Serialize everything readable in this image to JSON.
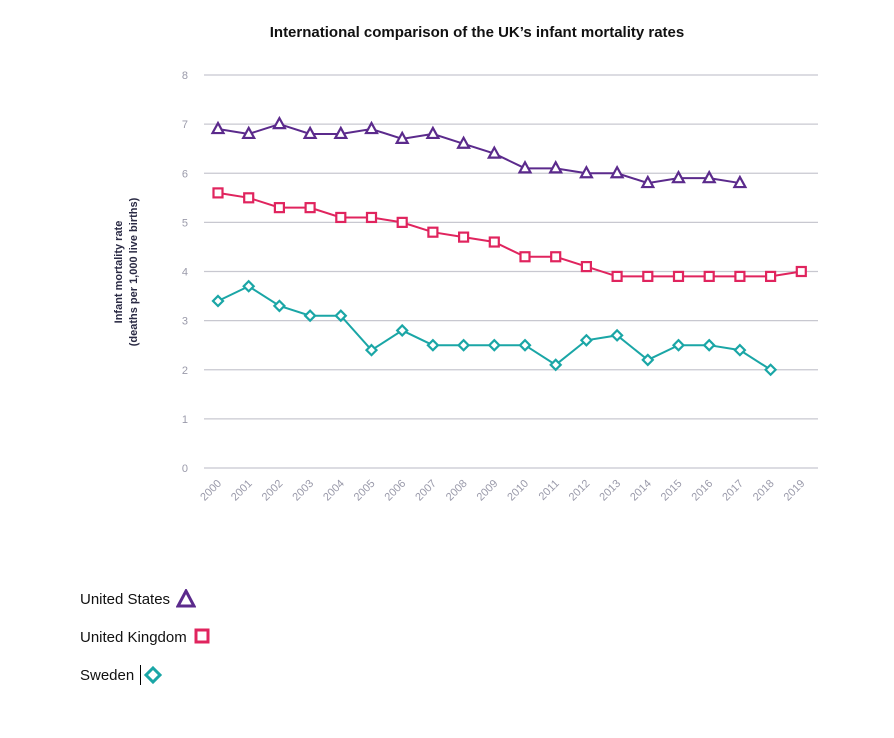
{
  "chart_data": {
    "type": "line",
    "title": "International comparison of the UK’s infant mortality rates",
    "ylabel_line1": "Infant mortality rate",
    "ylabel_line2": "(deaths per 1,000 live births)",
    "ylim": [
      0,
      8
    ],
    "yticks": [
      "0",
      "1",
      "2",
      "3",
      "4",
      "5",
      "6",
      "7",
      "8"
    ],
    "categories": [
      "2000",
      "2001",
      "2002",
      "2003",
      "2004",
      "2005",
      "2006",
      "2007",
      "2008",
      "2009",
      "2010",
      "2011",
      "2012",
      "2013",
      "2014",
      "2015",
      "2016",
      "2017",
      "2018",
      "2019"
    ],
    "grid": true,
    "legend_position": "bottom-left",
    "series": [
      {
        "name": "United States",
        "color": "#5b2a8c",
        "marker": "triangle",
        "values": [
          6.9,
          6.8,
          7.0,
          6.8,
          6.8,
          6.9,
          6.7,
          6.8,
          6.6,
          6.4,
          6.1,
          6.1,
          6.0,
          6.0,
          5.8,
          5.9,
          5.9,
          5.8,
          null,
          null
        ]
      },
      {
        "name": "United Kingdom",
        "color": "#e0245e",
        "marker": "square",
        "values": [
          5.6,
          5.5,
          5.3,
          5.3,
          5.1,
          5.1,
          5.0,
          4.8,
          4.7,
          4.6,
          4.3,
          4.3,
          4.1,
          3.9,
          3.9,
          3.9,
          3.9,
          3.9,
          3.9,
          4.0
        ]
      },
      {
        "name": "Sweden",
        "color": "#1aa6a6",
        "marker": "diamond",
        "values": [
          3.4,
          3.7,
          3.3,
          3.1,
          3.1,
          2.4,
          2.8,
          2.5,
          2.5,
          2.5,
          2.5,
          2.1,
          2.6,
          2.7,
          2.2,
          2.5,
          2.5,
          2.4,
          2.0,
          null
        ]
      }
    ]
  },
  "legend": {
    "items": [
      {
        "label": "United States",
        "icon": "triangle-icon"
      },
      {
        "label": "United Kingdom",
        "icon": "square-icon"
      },
      {
        "label": "Sweden",
        "icon": "diamond-icon"
      }
    ]
  }
}
